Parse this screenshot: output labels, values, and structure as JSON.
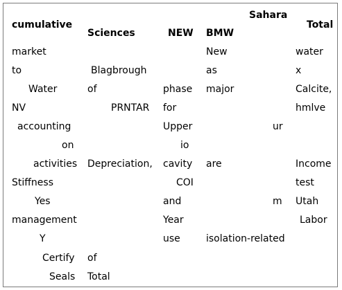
{
  "headers": [
    "cumulative",
    "Sciences",
    "NEW",
    "BMW",
    "Sahara",
    "Total"
  ],
  "rows": [
    [
      "market",
      "",
      "",
      "New",
      "",
      "water"
    ],
    [
      "to",
      "Blagbrough",
      "",
      "as",
      "",
      "x"
    ],
    [
      "Water",
      "of",
      "phase",
      "major",
      "",
      "Calcite,"
    ],
    [
      "NV",
      "PRNTAR",
      "for",
      "",
      "",
      "hmlve"
    ],
    [
      "accounting",
      "",
      "Upper",
      "",
      "ur",
      ""
    ],
    [
      "on",
      "",
      "io",
      "",
      "",
      ""
    ],
    [
      "activities",
      "Depreciation,",
      "cavity",
      "are",
      "",
      "Income"
    ],
    [
      "Stiffness",
      "",
      "COI",
      "",
      "",
      "test"
    ],
    [
      "Yes",
      "",
      "and",
      "",
      "m",
      "Utah"
    ],
    [
      "management",
      "",
      "Year",
      "",
      "",
      "Labor"
    ],
    [
      "Y",
      "",
      "use",
      "isolation-related",
      "",
      ""
    ],
    [
      "Certify",
      "of",
      "",
      "",
      "",
      ""
    ],
    [
      "Seals",
      "Total",
      "",
      "",
      "",
      ""
    ]
  ]
}
